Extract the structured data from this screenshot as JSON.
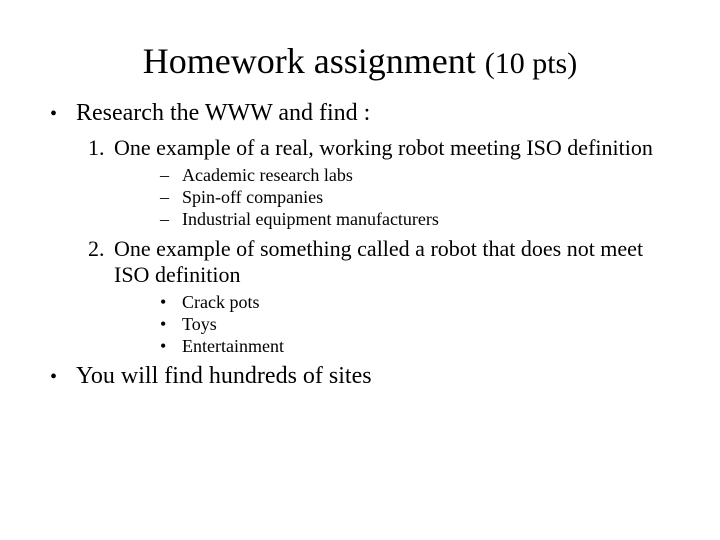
{
  "colors": {
    "background": "#ffffff",
    "text": "#000000"
  },
  "typography": {
    "font_family": "Times New Roman",
    "title_fontsize": 36,
    "title_sub_fontsize": 30,
    "level1_fontsize": 24,
    "level2_fontsize": 22,
    "level3_fontsize": 18
  },
  "title": {
    "main": "Homework assignment",
    "sub": "(10 pts)"
  },
  "bullets": {
    "top1": {
      "marker": "•",
      "text": "Research the WWW and find :"
    },
    "num1": {
      "marker": "1.",
      "text": "One example of a real, working robot meeting ISO definition"
    },
    "n1s1": {
      "marker": "–",
      "text": "Academic research labs"
    },
    "n1s2": {
      "marker": "–",
      "text": "Spin-off companies"
    },
    "n1s3": {
      "marker": "–",
      "text": "Industrial equipment manufacturers"
    },
    "num2": {
      "marker": "2.",
      "text": "One example of something called a robot that does not meet ISO definition"
    },
    "n2s1": {
      "marker": "•",
      "text": "Crack pots"
    },
    "n2s2": {
      "marker": "•",
      "text": "Toys"
    },
    "n2s3": {
      "marker": "•",
      "text": "Entertainment"
    },
    "top2": {
      "marker": "•",
      "text": "You will find hundreds of sites"
    }
  }
}
